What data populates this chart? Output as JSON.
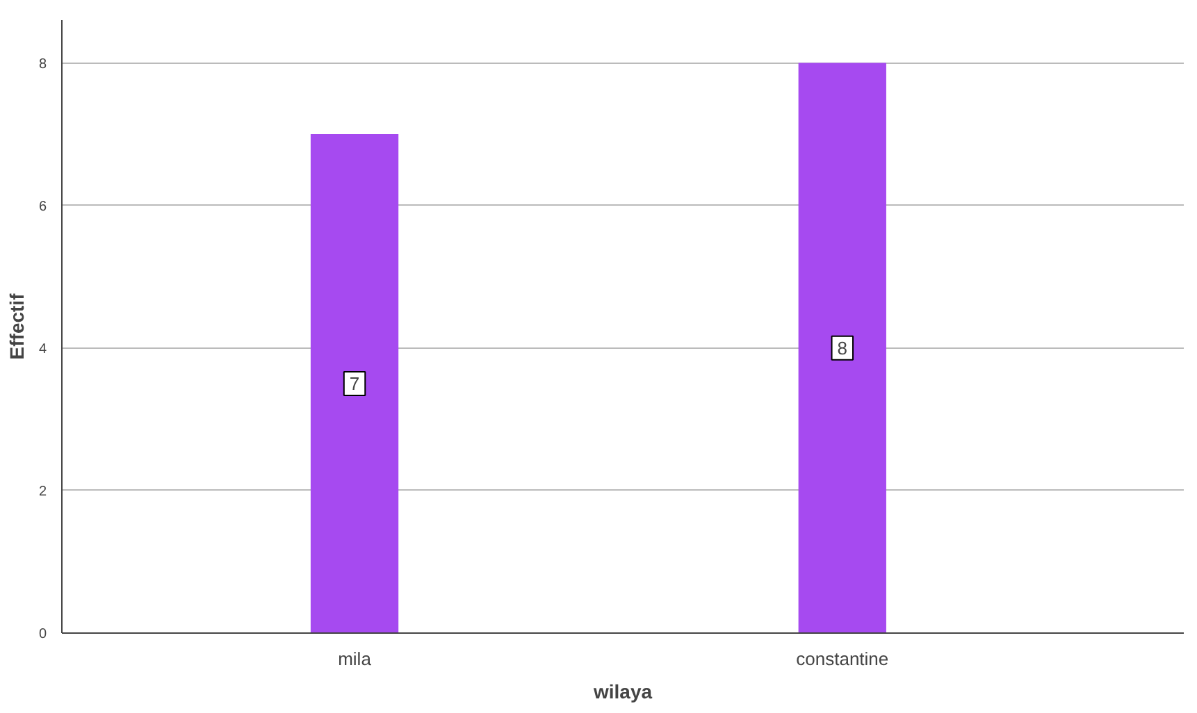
{
  "chart_data": {
    "type": "bar",
    "xlabel": "wilaya",
    "ylabel": "Effectif",
    "categories": [
      "mila",
      "constantine"
    ],
    "values": [
      7,
      8
    ],
    "color": "#a64af0",
    "ylim": [
      0,
      8.6
    ],
    "yticks": [
      0,
      2,
      4,
      6,
      8
    ],
    "grid": "y",
    "data_labels": true
  }
}
